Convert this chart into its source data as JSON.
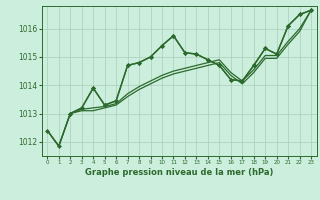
{
  "bg_color": "#cceedd",
  "grid_color": "#aaccbb",
  "line_color": "#2d6a2d",
  "marker_color": "#2d6a2d",
  "xlabel": "Graphe pression niveau de la mer (hPa)",
  "xlim": [
    -0.5,
    23.5
  ],
  "ylim": [
    1011.5,
    1016.8
  ],
  "yticks": [
    1012,
    1013,
    1014,
    1015,
    1016
  ],
  "xticks": [
    0,
    1,
    2,
    3,
    4,
    5,
    6,
    7,
    8,
    9,
    10,
    11,
    12,
    13,
    14,
    15,
    16,
    17,
    18,
    19,
    20,
    21,
    22,
    23
  ],
  "lines": [
    {
      "x": [
        0,
        1,
        2,
        3,
        4,
        5,
        6,
        7,
        8,
        9,
        10,
        11,
        12,
        13,
        14,
        15,
        16,
        17,
        18,
        19,
        20,
        21,
        22,
        23
      ],
      "y": [
        1012.4,
        1011.85,
        1013.0,
        1013.2,
        1013.9,
        1013.3,
        1013.45,
        1014.7,
        1014.8,
        1015.0,
        1015.4,
        1015.75,
        1015.15,
        1015.1,
        1014.9,
        1014.7,
        1014.2,
        1014.15,
        1014.7,
        1015.3,
        1015.1,
        1016.1,
        1016.5,
        1016.65
      ],
      "has_markers": true,
      "linewidth": 1.0
    },
    {
      "x": [
        0,
        1,
        2,
        3,
        4,
        5,
        6,
        7,
        8,
        9,
        10,
        11,
        12,
        13,
        14,
        15,
        16,
        17,
        18,
        19,
        20,
        21,
        22,
        23
      ],
      "y": [
        1012.4,
        1011.85,
        1013.0,
        1013.15,
        1013.2,
        1013.25,
        1013.35,
        1013.7,
        1013.95,
        1014.15,
        1014.35,
        1014.5,
        1014.6,
        1014.7,
        1014.8,
        1014.9,
        1014.45,
        1014.15,
        1014.55,
        1015.05,
        1015.05,
        1015.55,
        1016.0,
        1016.65
      ],
      "has_markers": false,
      "linewidth": 0.9
    },
    {
      "x": [
        0,
        1,
        2,
        3,
        4,
        5,
        6,
        7,
        8,
        9,
        10,
        11,
        12,
        13,
        14,
        15,
        16,
        17,
        18,
        19,
        20,
        21,
        22,
        23
      ],
      "y": [
        1012.4,
        1011.85,
        1013.0,
        1013.1,
        1013.1,
        1013.2,
        1013.3,
        1013.6,
        1013.85,
        1014.05,
        1014.25,
        1014.4,
        1014.5,
        1014.6,
        1014.7,
        1014.8,
        1014.35,
        1014.05,
        1014.45,
        1014.95,
        1014.95,
        1015.45,
        1015.9,
        1016.65
      ],
      "has_markers": false,
      "linewidth": 0.9
    },
    {
      "x": [
        2,
        3,
        4,
        5,
        6,
        7,
        8,
        9,
        10,
        11,
        12,
        13,
        14,
        15,
        16,
        17,
        18,
        19,
        20,
        21,
        22,
        23
      ],
      "y": [
        1013.0,
        1013.2,
        1013.9,
        1013.3,
        1013.45,
        1014.7,
        1014.8,
        1015.0,
        1015.4,
        1015.75,
        1015.15,
        1015.1,
        1014.9,
        1014.7,
        1014.2,
        1014.15,
        1014.7,
        1015.3,
        1015.1,
        1016.1,
        1016.5,
        1016.65
      ],
      "has_markers": true,
      "linewidth": 1.0
    }
  ]
}
